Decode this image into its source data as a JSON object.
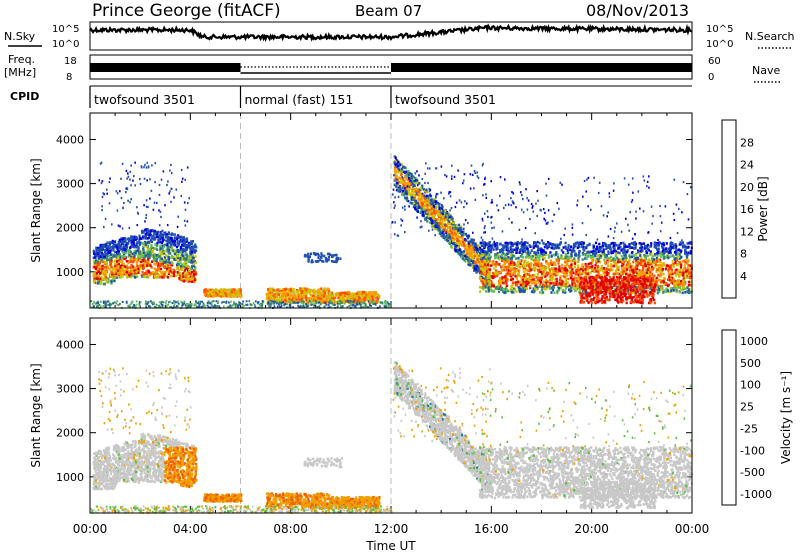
{
  "header": {
    "station": "Prince George (fitACF)",
    "beam": "Beam 07",
    "date": "08/Nov/2013"
  },
  "top_panels": {
    "nsky_label": "N.Sky",
    "nsky_ticks": [
      "10^5",
      "10^0"
    ],
    "nsearch_label": "N.Search",
    "nsearch_ticks": [
      "10^5",
      "10^0"
    ],
    "freq_label_1": "Freq.",
    "freq_label_2": "[MHz]",
    "freq_ticks": [
      "18",
      "8"
    ],
    "nave_label": "Nave",
    "nave_ticks": [
      "60",
      "0"
    ],
    "cpid_label": "CPID"
  },
  "cpid_segments": [
    {
      "label": "twofsound 3501",
      "start_hour": 0,
      "end_hour": 6
    },
    {
      "label": "normal (fast) 151",
      "start_hour": 6,
      "end_hour": 12
    },
    {
      "label": "twofsound 3501",
      "start_hour": 12,
      "end_hour": 24
    }
  ],
  "chart_data": [
    {
      "type": "heatmap",
      "name": "power",
      "ylabel": "Slant Range [km]",
      "xlabel": "Time UT",
      "x_ticks": [
        "00:00",
        "04:00",
        "08:00",
        "12:00",
        "16:00",
        "20:00",
        "00:00"
      ],
      "x_range_hours": [
        0,
        24
      ],
      "y_ticks": [
        1000,
        2000,
        3000,
        4000
      ],
      "ylim": [
        180,
        4600
      ],
      "colorbar": {
        "label": "Power [dB]",
        "tick_labels": [
          "28",
          "24",
          "20",
          "16",
          "12",
          "8",
          "4"
        ],
        "colors": [
          "#e00000",
          "#ff5000",
          "#ff9a00",
          "#c8c800",
          "#60c060",
          "#3a8a6a",
          "#2050b0",
          "#0000e0"
        ]
      },
      "regions": [
        {
          "t": [
            0.1,
            4.2
          ],
          "r": [
            750,
            1900
          ],
          "level": "8-16"
        },
        {
          "t": [
            0.3,
            4.0
          ],
          "r": [
            900,
            1300
          ],
          "level": "20-28"
        },
        {
          "t": [
            4.5,
            6.0
          ],
          "r": [
            450,
            650
          ],
          "level": "16-24"
        },
        {
          "t": [
            7.0,
            11.5
          ],
          "r": [
            350,
            650
          ],
          "level": "16-24"
        },
        {
          "t": [
            12.0,
            15.9
          ],
          "r": [
            900,
            3500
          ],
          "level": "8-20"
        },
        {
          "t": [
            15.5,
            23.9
          ],
          "r": [
            600,
            1800
          ],
          "level": "8-24"
        },
        {
          "t": [
            19.5,
            22.5
          ],
          "r": [
            300,
            1000
          ],
          "level": "24-28"
        }
      ]
    },
    {
      "type": "heatmap",
      "name": "velocity",
      "ylabel": "Slant Range [km]",
      "xlabel": "Time UT",
      "x_ticks": [
        "00:00",
        "04:00",
        "08:00",
        "12:00",
        "16:00",
        "20:00",
        "00:00"
      ],
      "x_range_hours": [
        0,
        24
      ],
      "y_ticks": [
        1000,
        2000,
        3000,
        4000
      ],
      "ylim": [
        180,
        4600
      ],
      "colorbar": {
        "label": "Velocity [m s⁻¹]",
        "tick_labels": [
          "1000",
          "500",
          "100",
          "25",
          "-25",
          "-100",
          "-500",
          "-1000"
        ],
        "colors": [
          "#2040c0",
          "#2e7f9e",
          "#5bbf3e",
          "#c8c8c8",
          "#c8c8c8",
          "#f0a000",
          "#f06000",
          "#e00000"
        ]
      },
      "regions": [
        {
          "t": [
            0.1,
            4.2
          ],
          "r": [
            700,
            2300
          ],
          "level": "-25 to 25"
        },
        {
          "t": [
            2.8,
            4.2
          ],
          "r": [
            900,
            1800
          ],
          "level": "-100 to -500"
        },
        {
          "t": [
            4.5,
            11.5
          ],
          "r": [
            300,
            650
          ],
          "level": "-100"
        },
        {
          "t": [
            12.0,
            15.8
          ],
          "r": [
            900,
            3400
          ],
          "level": "-25 to 25"
        },
        {
          "t": [
            15.5,
            23.9
          ],
          "r": [
            500,
            1800
          ],
          "level": "-25 to 25"
        }
      ]
    }
  ],
  "colors": {
    "axes": "#000000",
    "grid_dash": "#bbbbbb"
  }
}
